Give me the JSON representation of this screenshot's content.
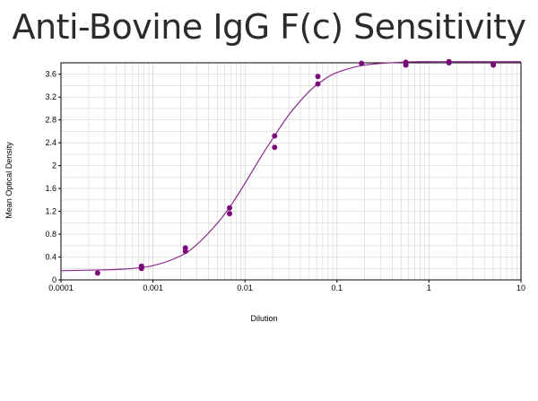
{
  "chart_data": {
    "type": "scatter",
    "title": "Anti-Bovine IgG F(c) Sensitivity",
    "xlabel": "Dilution",
    "ylabel": "Mean Optical Density",
    "x_scale": "log",
    "xlim": [
      0.0001,
      10
    ],
    "ylim": [
      0,
      3.8
    ],
    "x_ticks": [
      "0.0001",
      "0.001",
      "0.01",
      "0.1",
      "1",
      "10"
    ],
    "y_ticks": [
      "0",
      "0.4",
      "0.8",
      "1.2",
      "1.6",
      "2",
      "2.4",
      "2.8",
      "3.2",
      "3.6"
    ],
    "grid": true,
    "colors": {
      "point": "#7a0a7a",
      "curve": "#8a2a8a",
      "grid": "#d6d6d6",
      "axis": "#000000"
    },
    "series": [
      {
        "kind": "points",
        "x": [
          0.00025,
          0.00075,
          0.00075,
          0.00225,
          0.00225,
          0.0068,
          0.0068,
          0.021,
          0.021,
          0.062,
          0.062,
          0.185,
          0.56,
          0.56,
          1.65,
          1.65,
          5.0,
          5.0
        ],
        "y": [
          0.12,
          0.24,
          0.2,
          0.56,
          0.5,
          1.26,
          1.16,
          2.52,
          2.32,
          3.56,
          3.43,
          3.79,
          3.81,
          3.76,
          3.82,
          3.8,
          3.77,
          3.76
        ]
      },
      {
        "kind": "fit",
        "x": [
          0.0001,
          0.0002,
          0.0005,
          0.001,
          0.002,
          0.003,
          0.005,
          0.007,
          0.01,
          0.015,
          0.02,
          0.03,
          0.05,
          0.07,
          0.1,
          0.2,
          0.5,
          1,
          2,
          5,
          10
        ],
        "y": [
          0.16,
          0.17,
          0.19,
          0.25,
          0.42,
          0.62,
          0.99,
          1.3,
          1.69,
          2.16,
          2.47,
          2.89,
          3.3,
          3.49,
          3.63,
          3.76,
          3.81,
          3.82,
          3.82,
          3.82,
          3.82
        ]
      }
    ]
  }
}
